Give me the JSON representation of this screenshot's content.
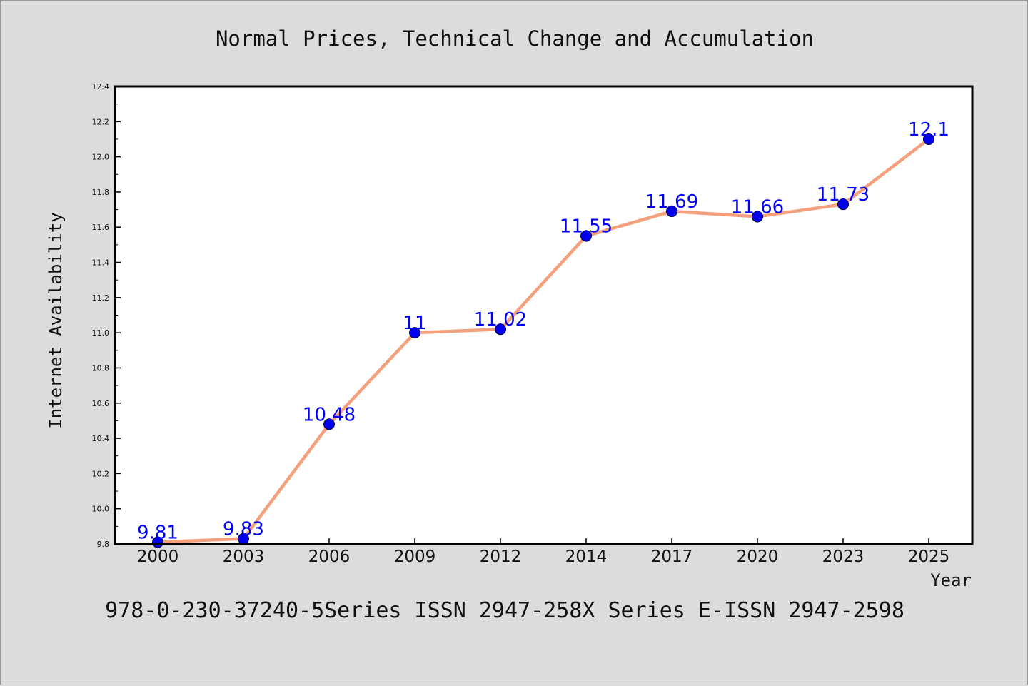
{
  "chart_data": {
    "type": "line",
    "title": "Normal Prices, Technical Change and Accumulation",
    "xlabel": "Year",
    "ylabel": "Internet Availability",
    "categories": [
      "2000",
      "2003",
      "2006",
      "2009",
      "2012",
      "2014",
      "2017",
      "2020",
      "2023",
      "2025"
    ],
    "values": [
      9.81,
      9.83,
      10.48,
      11,
      11.02,
      11.55,
      11.69,
      11.66,
      11.73,
      12.1
    ],
    "data_labels": [
      "9.81",
      "9.83",
      "10.48",
      "11",
      "11.02",
      "11.55",
      "11.69",
      "11.66",
      "11.73",
      "12.1"
    ],
    "ylim": [
      9.8,
      12.4
    ],
    "yticks": [
      "9.8",
      "10.0",
      "10.2",
      "10.4",
      "10.6",
      "10.8",
      "11.0",
      "11.2",
      "11.4",
      "11.6",
      "11.8",
      "12.0",
      "12.2",
      "12.4"
    ],
    "grid": false,
    "legend": "none",
    "line_color": "#f4a07c",
    "marker_color": "#0000ee",
    "label_color": "#0000ff"
  },
  "footer": "978-0-230-37240-5Series ISSN 2947-258X Series E-ISSN 2947-2598"
}
